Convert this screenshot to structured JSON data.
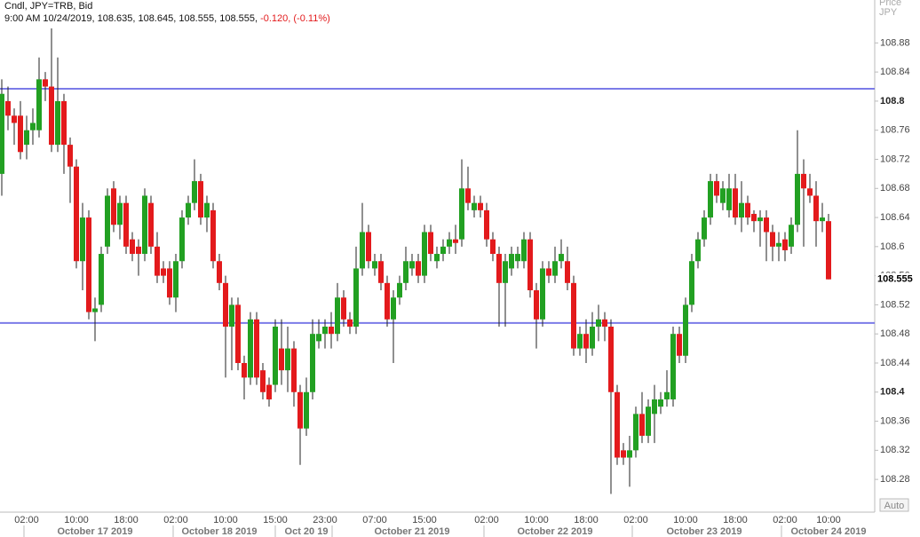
{
  "chart_data": {
    "type": "candlestick",
    "title": "Cndl, JPY=TRB, Bid",
    "subtitle": "9:00 AM 10/24/2019, 108.635, 108.645, 108.555, 108.555,",
    "change_text": "-0.120, (-0.11%)",
    "y_axis_label": [
      "Price",
      "JPY"
    ],
    "auto_button": "Auto",
    "last_price": 108.555,
    "up_color": "#22a022",
    "down_color": "#e31a1c",
    "line_color": "#7b7be8",
    "hlines": [
      108.817,
      108.495
    ],
    "ylim": [
      108.235,
      108.939
    ],
    "yticks": [
      108.28,
      108.32,
      108.36,
      108.4,
      108.44,
      108.48,
      108.52,
      108.56,
      108.6,
      108.64,
      108.68,
      108.72,
      108.76,
      108.8,
      108.84,
      108.88
    ],
    "yticks_bold": [
      108.4,
      108.8
    ],
    "categories": [
      null,
      null,
      null,
      null,
      "02:00",
      null,
      null,
      null,
      null,
      null,
      null,
      null,
      "10:00",
      null,
      null,
      null,
      null,
      null,
      null,
      null,
      "18:00",
      null,
      null,
      null,
      null,
      null,
      null,
      null,
      "02:00",
      null,
      null,
      null,
      null,
      null,
      null,
      null,
      "10:00",
      null,
      null,
      null,
      null,
      null,
      null,
      null,
      "15:00",
      null,
      null,
      null,
      null,
      null,
      null,
      null,
      "23:00",
      null,
      null,
      null,
      null,
      null,
      null,
      null,
      "07:00",
      null,
      null,
      null,
      null,
      null,
      null,
      null,
      "15:00",
      null,
      null,
      null,
      null,
      null,
      null,
      null,
      null,
      null,
      "02:00",
      null,
      null,
      null,
      null,
      null,
      null,
      null,
      "10:00",
      null,
      null,
      null,
      null,
      null,
      null,
      null,
      "18:00",
      null,
      null,
      null,
      null,
      null,
      null,
      null,
      "02:00",
      null,
      null,
      null,
      null,
      null,
      null,
      null,
      "10:00",
      null,
      null,
      null,
      null,
      null,
      null,
      null,
      "18:00",
      null,
      null,
      null,
      null,
      null,
      null,
      null,
      "02:00",
      null,
      null,
      null,
      null,
      null,
      null,
      "10:00"
    ],
    "date_categories": [
      null,
      null,
      null,
      null,
      null,
      null,
      null,
      null,
      null,
      null,
      null,
      null,
      null,
      null,
      null,
      "October 17 2019",
      null,
      null,
      null,
      null,
      null,
      null,
      null,
      null,
      null,
      null,
      null,
      null,
      null,
      null,
      null,
      null,
      null,
      null,
      null,
      "October 18 2019",
      null,
      null,
      null,
      null,
      null,
      null,
      null,
      null,
      null,
      null,
      null,
      null,
      null,
      "Oct 20 19",
      null,
      null,
      null,
      null,
      null,
      null,
      null,
      null,
      null,
      null,
      null,
      null,
      null,
      null,
      null,
      null,
      "October 21 2019",
      null,
      null,
      null,
      null,
      null,
      null,
      null,
      null,
      null,
      null,
      null,
      null,
      null,
      null,
      null,
      null,
      null,
      null,
      null,
      null,
      null,
      null,
      "October 22 2019",
      null,
      null,
      null,
      null,
      null,
      null,
      null,
      null,
      null,
      null,
      null,
      null,
      null,
      null,
      null,
      null,
      null,
      null,
      null,
      null,
      null,
      null,
      null,
      "October 23 2019",
      null,
      null,
      null,
      null,
      null,
      null,
      null,
      null,
      null,
      null,
      null,
      null,
      null,
      null,
      null,
      null,
      null,
      null,
      null,
      "October 24 2019"
    ],
    "candles": [
      [
        108.7,
        108.83,
        108.67,
        108.81
      ],
      [
        108.8,
        108.82,
        108.76,
        108.78
      ],
      [
        108.78,
        108.79,
        108.74,
        108.77
      ],
      [
        108.78,
        108.8,
        108.72,
        108.73
      ],
      [
        108.74,
        108.78,
        108.72,
        108.76
      ],
      [
        108.76,
        108.79,
        108.74,
        108.77
      ],
      [
        108.76,
        108.86,
        108.75,
        108.83
      ],
      [
        108.83,
        108.84,
        108.8,
        108.82
      ],
      [
        108.82,
        108.9,
        108.73,
        108.74
      ],
      [
        108.74,
        108.86,
        108.73,
        108.8
      ],
      [
        108.8,
        108.81,
        108.7,
        108.74
      ],
      [
        108.74,
        108.75,
        108.66,
        108.71
      ],
      [
        108.71,
        108.72,
        108.57,
        108.58
      ],
      [
        108.58,
        108.66,
        108.54,
        108.64
      ],
      [
        108.64,
        108.65,
        108.5,
        108.51
      ],
      [
        108.51,
        108.53,
        108.47,
        108.515
      ],
      [
        108.52,
        108.6,
        108.51,
        108.59
      ],
      [
        108.6,
        108.68,
        108.59,
        108.67
      ],
      [
        108.68,
        108.69,
        108.62,
        108.63
      ],
      [
        108.63,
        108.67,
        108.61,
        108.66
      ],
      [
        108.66,
        108.67,
        108.59,
        108.6
      ],
      [
        108.61,
        108.62,
        108.58,
        108.59
      ],
      [
        108.6,
        108.61,
        108.56,
        108.59
      ],
      [
        108.59,
        108.68,
        108.58,
        108.67
      ],
      [
        108.66,
        108.67,
        108.59,
        108.6
      ],
      [
        108.6,
        108.62,
        108.55,
        108.56
      ],
      [
        108.57,
        108.58,
        108.55,
        108.56
      ],
      [
        108.57,
        108.58,
        108.52,
        108.53
      ],
      [
        108.53,
        108.59,
        108.51,
        108.58
      ],
      [
        108.58,
        108.65,
        108.57,
        108.64
      ],
      [
        108.64,
        108.67,
        108.63,
        108.66
      ],
      [
        108.66,
        108.72,
        108.65,
        108.69
      ],
      [
        108.69,
        108.7,
        108.63,
        108.64
      ],
      [
        108.64,
        108.67,
        108.62,
        108.66
      ],
      [
        108.65,
        108.66,
        108.57,
        108.58
      ],
      [
        108.58,
        108.59,
        108.54,
        108.55
      ],
      [
        108.55,
        108.56,
        108.42,
        108.49
      ],
      [
        108.49,
        108.53,
        108.43,
        108.52
      ],
      [
        108.52,
        108.53,
        108.43,
        108.44
      ],
      [
        108.44,
        108.45,
        108.39,
        108.42
      ],
      [
        108.42,
        108.51,
        108.41,
        108.5
      ],
      [
        108.5,
        108.51,
        108.41,
        108.42
      ],
      [
        108.43,
        108.44,
        108.39,
        108.4
      ],
      [
        108.41,
        108.42,
        108.38,
        108.39
      ],
      [
        108.41,
        108.5,
        108.4,
        108.49
      ],
      [
        108.46,
        108.5,
        108.41,
        108.43
      ],
      [
        108.43,
        108.49,
        108.4,
        108.46
      ],
      [
        108.46,
        108.47,
        108.38,
        108.4
      ],
      [
        108.4,
        108.41,
        108.3,
        108.35
      ],
      [
        108.35,
        108.42,
        108.34,
        108.4
      ],
      [
        108.4,
        108.5,
        108.39,
        108.48
      ],
      [
        108.47,
        108.5,
        108.46,
        108.48
      ],
      [
        108.48,
        108.5,
        108.46,
        108.49
      ],
      [
        108.49,
        108.51,
        108.46,
        108.48
      ],
      [
        108.48,
        108.55,
        108.47,
        108.53
      ],
      [
        108.53,
        108.54,
        108.49,
        108.5
      ],
      [
        108.5,
        108.51,
        108.48,
        108.49
      ],
      [
        108.49,
        108.6,
        108.48,
        108.57
      ],
      [
        108.57,
        108.66,
        108.56,
        108.62
      ],
      [
        108.62,
        108.63,
        108.57,
        108.58
      ],
      [
        108.57,
        108.59,
        108.56,
        108.58
      ],
      [
        108.58,
        108.59,
        108.54,
        108.55
      ],
      [
        108.55,
        108.56,
        108.49,
        108.5
      ],
      [
        108.5,
        108.54,
        108.44,
        108.53
      ],
      [
        108.53,
        108.56,
        108.52,
        108.55
      ],
      [
        108.55,
        108.6,
        108.54,
        108.58
      ],
      [
        108.57,
        108.59,
        108.56,
        108.58
      ],
      [
        108.58,
        108.59,
        108.55,
        108.56
      ],
      [
        108.56,
        108.63,
        108.55,
        108.62
      ],
      [
        108.62,
        108.63,
        108.58,
        108.59
      ],
      [
        108.58,
        108.6,
        108.57,
        108.59
      ],
      [
        108.59,
        108.61,
        108.58,
        108.6
      ],
      [
        108.6,
        108.62,
        108.59,
        108.61
      ],
      [
        108.61,
        108.63,
        108.59,
        108.605
      ],
      [
        108.61,
        108.72,
        108.6,
        108.68
      ],
      [
        108.68,
        108.71,
        108.65,
        108.66
      ],
      [
        108.65,
        108.67,
        108.64,
        108.66
      ],
      [
        108.66,
        108.67,
        108.64,
        108.65
      ],
      [
        108.65,
        108.66,
        108.6,
        108.61
      ],
      [
        108.61,
        108.62,
        108.58,
        108.59
      ],
      [
        108.59,
        108.6,
        108.49,
        108.55
      ],
      [
        108.55,
        108.59,
        108.49,
        108.58
      ],
      [
        108.57,
        108.6,
        108.56,
        108.59
      ],
      [
        108.58,
        108.6,
        108.57,
        108.59
      ],
      [
        108.58,
        108.62,
        108.57,
        108.61
      ],
      [
        108.61,
        108.62,
        108.53,
        108.54
      ],
      [
        108.54,
        108.55,
        108.46,
        108.5
      ],
      [
        108.5,
        108.58,
        108.49,
        108.57
      ],
      [
        108.57,
        108.58,
        108.55,
        108.56
      ],
      [
        108.56,
        108.6,
        108.55,
        108.58
      ],
      [
        108.58,
        108.61,
        108.57,
        108.59
      ],
      [
        108.58,
        108.6,
        108.54,
        108.55
      ],
      [
        108.55,
        108.56,
        108.45,
        108.46
      ],
      [
        108.46,
        108.49,
        108.45,
        108.48
      ],
      [
        108.48,
        108.5,
        108.44,
        108.46
      ],
      [
        108.46,
        108.51,
        108.45,
        108.49
      ],
      [
        108.49,
        108.52,
        108.47,
        108.5
      ],
      [
        108.5,
        108.51,
        108.47,
        108.49
      ],
      [
        108.49,
        108.5,
        108.26,
        108.4
      ],
      [
        108.4,
        108.41,
        108.3,
        108.31
      ],
      [
        108.32,
        108.33,
        108.3,
        108.31
      ],
      [
        108.31,
        108.34,
        108.27,
        108.32
      ],
      [
        108.32,
        108.38,
        108.31,
        108.37
      ],
      [
        108.37,
        108.4,
        108.33,
        108.34
      ],
      [
        108.34,
        108.39,
        108.33,
        108.38
      ],
      [
        108.37,
        108.41,
        108.33,
        108.39
      ],
      [
        108.38,
        108.4,
        108.37,
        108.39
      ],
      [
        108.39,
        108.43,
        108.38,
        108.4
      ],
      [
        108.39,
        108.49,
        108.38,
        108.48
      ],
      [
        108.48,
        108.49,
        108.44,
        108.45
      ],
      [
        108.45,
        108.53,
        108.44,
        108.52
      ],
      [
        108.52,
        108.59,
        108.51,
        108.58
      ],
      [
        108.58,
        108.62,
        108.57,
        108.61
      ],
      [
        108.61,
        108.65,
        108.6,
        108.64
      ],
      [
        108.64,
        108.7,
        108.63,
        108.69
      ],
      [
        108.69,
        108.7,
        108.66,
        108.67
      ],
      [
        108.66,
        108.69,
        108.65,
        108.68
      ],
      [
        108.65,
        108.7,
        108.64,
        108.68
      ],
      [
        108.68,
        108.7,
        108.63,
        108.64
      ],
      [
        108.64,
        108.69,
        108.62,
        108.66
      ],
      [
        108.66,
        108.67,
        108.63,
        108.64
      ],
      [
        108.645,
        108.65,
        108.62,
        108.635
      ],
      [
        108.635,
        108.65,
        108.6,
        108.64
      ],
      [
        108.64,
        108.65,
        108.58,
        108.62
      ],
      [
        108.62,
        108.63,
        108.58,
        108.6
      ],
      [
        108.6,
        108.62,
        108.58,
        108.605
      ],
      [
        108.61,
        108.62,
        108.58,
        108.595
      ],
      [
        108.6,
        108.64,
        108.59,
        108.63
      ],
      [
        108.63,
        108.76,
        108.62,
        108.7
      ],
      [
        108.7,
        108.72,
        108.6,
        108.68
      ],
      [
        108.68,
        108.7,
        108.66,
        108.67
      ],
      [
        108.67,
        108.69,
        108.6,
        108.635
      ],
      [
        108.635,
        108.66,
        108.62,
        108.64
      ],
      [
        108.635,
        108.645,
        108.555,
        108.555
      ]
    ]
  }
}
